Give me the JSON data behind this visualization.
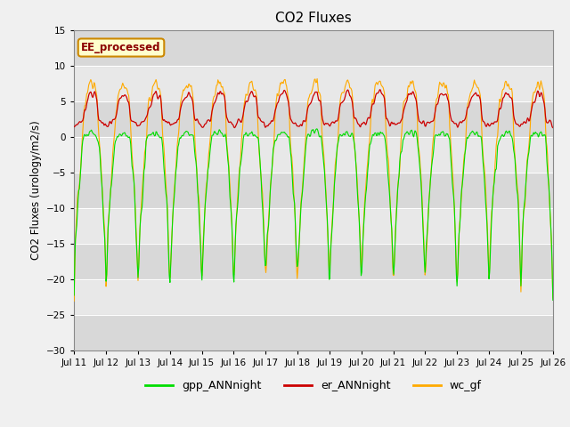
{
  "title": "CO2 Fluxes",
  "ylabel": "CO2 Fluxes (urology/m2/s)",
  "ylim": [
    -30,
    15
  ],
  "yticks": [
    -30,
    -25,
    -20,
    -15,
    -10,
    -5,
    0,
    5,
    10,
    15
  ],
  "start_day": 11,
  "end_day": 26,
  "n_days": 15,
  "n_points_per_day": 48,
  "annotation": "EE_processed",
  "colors": {
    "gpp": "#00dd00",
    "er": "#cc0000",
    "wc": "#ffaa00"
  },
  "legend_labels": [
    "gpp_ANNnight",
    "er_ANNnight",
    "wc_gf"
  ],
  "bg_color": "#f0f0f0",
  "plot_bg": "#e8e8e8",
  "grid_color": "#ffffff",
  "band_color": "#d8d8d8",
  "figsize": [
    6.4,
    4.8
  ],
  "dpi": 100
}
